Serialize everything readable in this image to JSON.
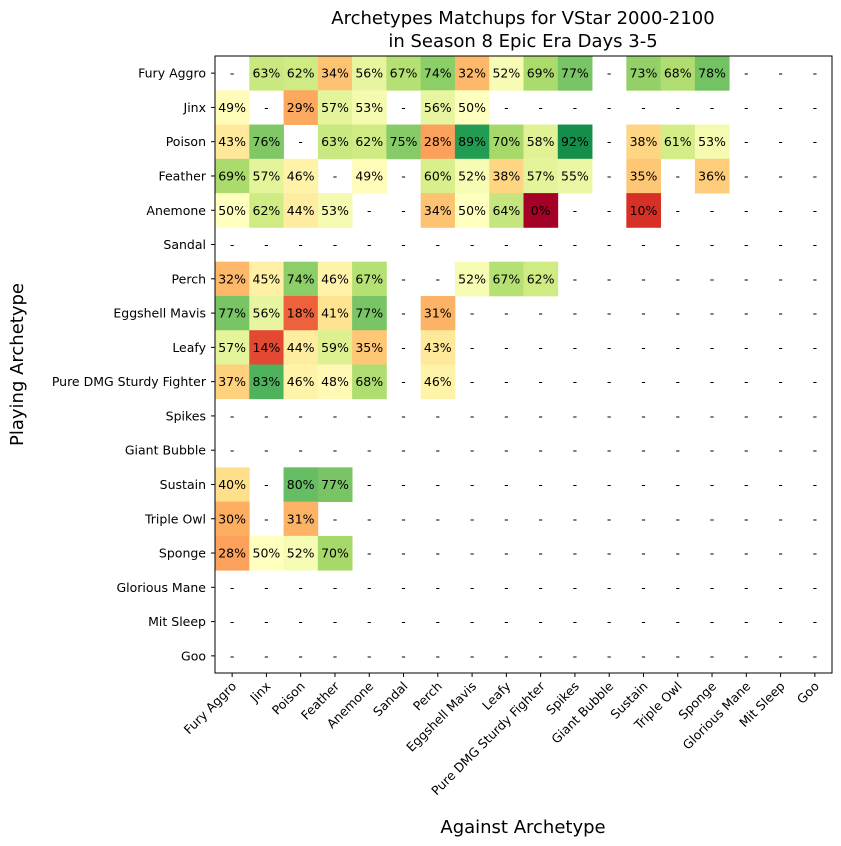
{
  "chart_data": {
    "type": "heatmap",
    "title_lines": [
      "Archetypes Matchups for VStar 2000-2100",
      "in Season 8 Epic Era Days 3-5"
    ],
    "xlabel": "Against Archetype",
    "ylabel": "Playing Archetype",
    "missing_label": "-",
    "value_format": "percent",
    "color_scale": "RdYlGn",
    "value_range": [
      0,
      100
    ],
    "rows": [
      "Fury Aggro",
      "Jinx",
      "Poison",
      "Feather",
      "Anemone",
      "Sandal",
      "Perch",
      "Eggshell Mavis",
      "Leafy",
      "Pure DMG Sturdy Fighter",
      "Spikes",
      "Giant Bubble",
      "Sustain",
      "Triple Owl",
      "Sponge",
      "Glorious Mane",
      "Mit Sleep",
      "Goo"
    ],
    "columns": [
      "Fury Aggro",
      "Jinx",
      "Poison",
      "Feather",
      "Anemone",
      "Sandal",
      "Perch",
      "Eggshell Mavis",
      "Leafy",
      "Pure DMG Sturdy Fighter",
      "Spikes",
      "Giant Bubble",
      "Sustain",
      "Triple Owl",
      "Sponge",
      "Glorious Mane",
      "Mit Sleep",
      "Goo"
    ],
    "values": [
      [
        null,
        63,
        62,
        34,
        56,
        67,
        74,
        32,
        52,
        69,
        77,
        null,
        73,
        68,
        78,
        null,
        null,
        null
      ],
      [
        49,
        null,
        29,
        57,
        53,
        null,
        56,
        50,
        null,
        null,
        null,
        null,
        null,
        null,
        null,
        null,
        null,
        null
      ],
      [
        43,
        76,
        null,
        63,
        62,
        75,
        28,
        89,
        70,
        58,
        92,
        null,
        38,
        61,
        53,
        null,
        null,
        null
      ],
      [
        69,
        57,
        46,
        null,
        49,
        null,
        60,
        52,
        38,
        57,
        55,
        null,
        35,
        null,
        36,
        null,
        null,
        null
      ],
      [
        50,
        62,
        44,
        53,
        null,
        null,
        34,
        50,
        64,
        0,
        null,
        null,
        10,
        null,
        null,
        null,
        null,
        null
      ],
      [
        null,
        null,
        null,
        null,
        null,
        null,
        null,
        null,
        null,
        null,
        null,
        null,
        null,
        null,
        null,
        null,
        null,
        null
      ],
      [
        32,
        45,
        74,
        46,
        67,
        null,
        null,
        52,
        67,
        62,
        null,
        null,
        null,
        null,
        null,
        null,
        null,
        null
      ],
      [
        77,
        56,
        18,
        41,
        77,
        null,
        31,
        null,
        null,
        null,
        null,
        null,
        null,
        null,
        null,
        null,
        null,
        null
      ],
      [
        57,
        14,
        44,
        59,
        35,
        null,
        43,
        null,
        null,
        null,
        null,
        null,
        null,
        null,
        null,
        null,
        null,
        null
      ],
      [
        37,
        83,
        46,
        48,
        68,
        null,
        46,
        null,
        null,
        null,
        null,
        null,
        null,
        null,
        null,
        null,
        null,
        null
      ],
      [
        null,
        null,
        null,
        null,
        null,
        null,
        null,
        null,
        null,
        null,
        null,
        null,
        null,
        null,
        null,
        null,
        null,
        null
      ],
      [
        null,
        null,
        null,
        null,
        null,
        null,
        null,
        null,
        null,
        null,
        null,
        null,
        null,
        null,
        null,
        null,
        null,
        null
      ],
      [
        40,
        null,
        80,
        77,
        null,
        null,
        null,
        null,
        null,
        null,
        null,
        null,
        null,
        null,
        null,
        null,
        null,
        null
      ],
      [
        30,
        null,
        31,
        null,
        null,
        null,
        null,
        null,
        null,
        null,
        null,
        null,
        null,
        null,
        null,
        null,
        null,
        null
      ],
      [
        28,
        50,
        52,
        70,
        null,
        null,
        null,
        null,
        null,
        null,
        null,
        null,
        null,
        null,
        null,
        null,
        null,
        null
      ],
      [
        null,
        null,
        null,
        null,
        null,
        null,
        null,
        null,
        null,
        null,
        null,
        null,
        null,
        null,
        null,
        null,
        null,
        null
      ],
      [
        null,
        null,
        null,
        null,
        null,
        null,
        null,
        null,
        null,
        null,
        null,
        null,
        null,
        null,
        null,
        null,
        null,
        null
      ],
      [
        null,
        null,
        null,
        null,
        null,
        null,
        null,
        null,
        null,
        null,
        null,
        null,
        null,
        null,
        null,
        null,
        null,
        null
      ]
    ]
  }
}
